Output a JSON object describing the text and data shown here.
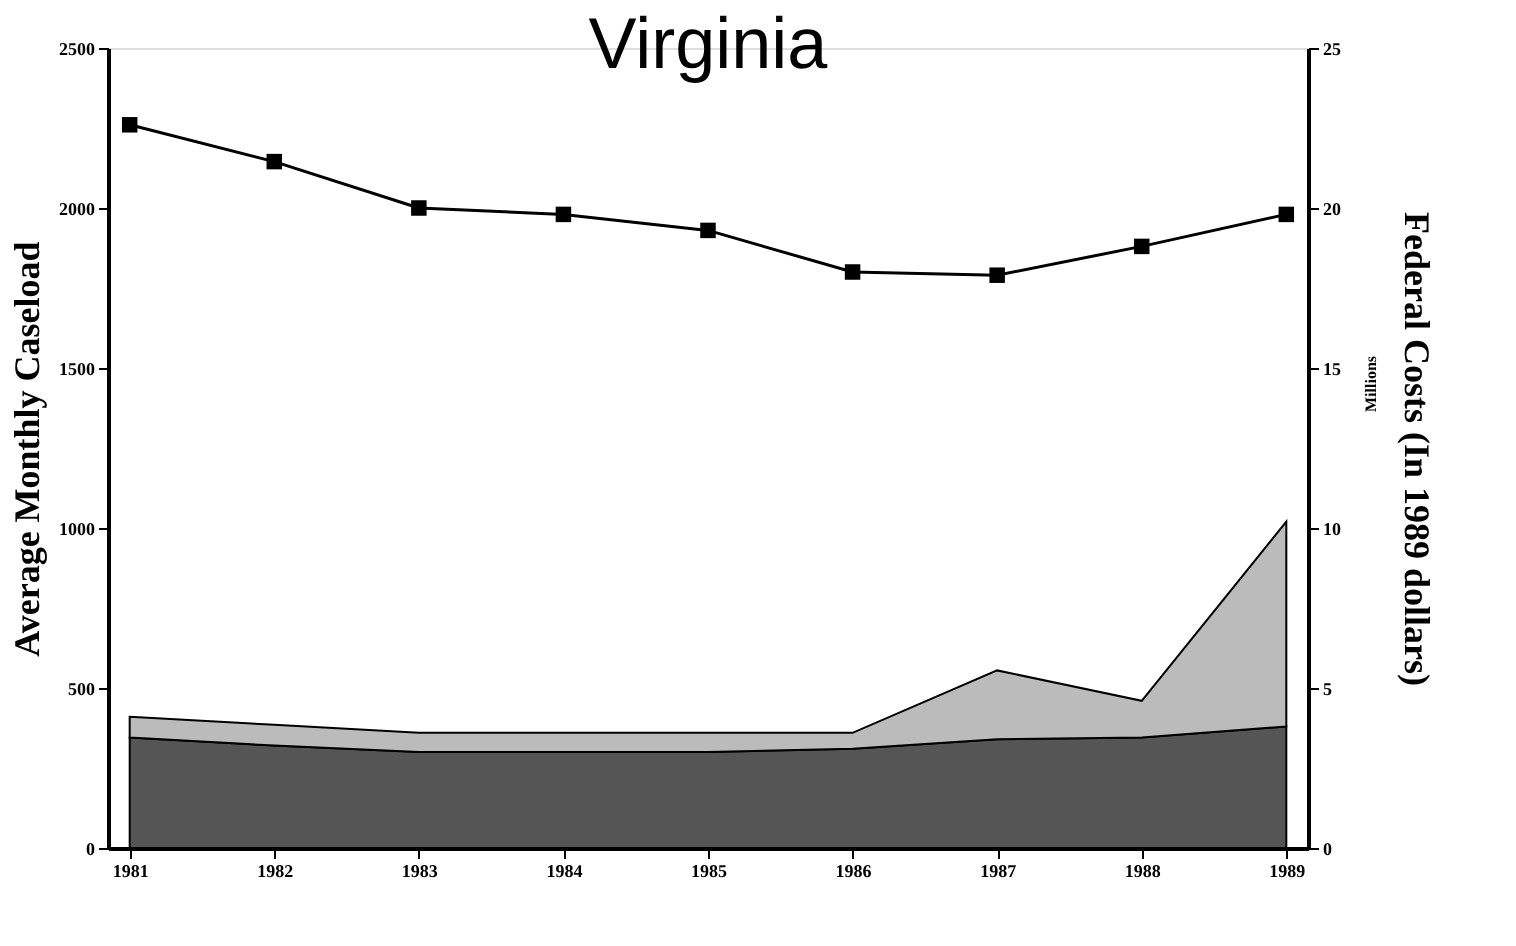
{
  "chart_data": {
    "type": "line",
    "title": "Virginia",
    "categories": [
      "1981",
      "1982",
      "1983",
      "1984",
      "1985",
      "1986",
      "1987",
      "1988",
      "1989"
    ],
    "ylabel": "Average Monthly Caseload",
    "y2label": "Federal Costs (In 1989 dollars)",
    "annotations": [
      "Millions"
    ],
    "ylim": [
      0,
      2500
    ],
    "yticks": [
      0,
      500,
      1000,
      1500,
      2000,
      2500
    ],
    "y2lim": [
      0,
      25
    ],
    "y2ticks": [
      0,
      5,
      10,
      15,
      20,
      25
    ],
    "grid": false,
    "stacked": true,
    "series": [
      {
        "color": "#000000",
        "marker": "square",
        "line_style": "solid",
        "values": [
          2260,
          2145,
          2000,
          1980,
          1930,
          1800,
          1790,
          1880,
          1980
        ]
      },
      {
        "type": "area",
        "axis": "y2",
        "color": "#555555",
        "values": [
          3.45,
          3.2,
          3.0,
          3.0,
          3.0,
          3.1,
          3.4,
          3.45,
          3.8
        ]
      },
      {
        "type": "area",
        "axis": "y2",
        "color": "#bbbbbb",
        "values": [
          0.65,
          0.65,
          0.6,
          0.6,
          0.6,
          0.5,
          2.15,
          1.15,
          6.4
        ]
      }
    ]
  }
}
